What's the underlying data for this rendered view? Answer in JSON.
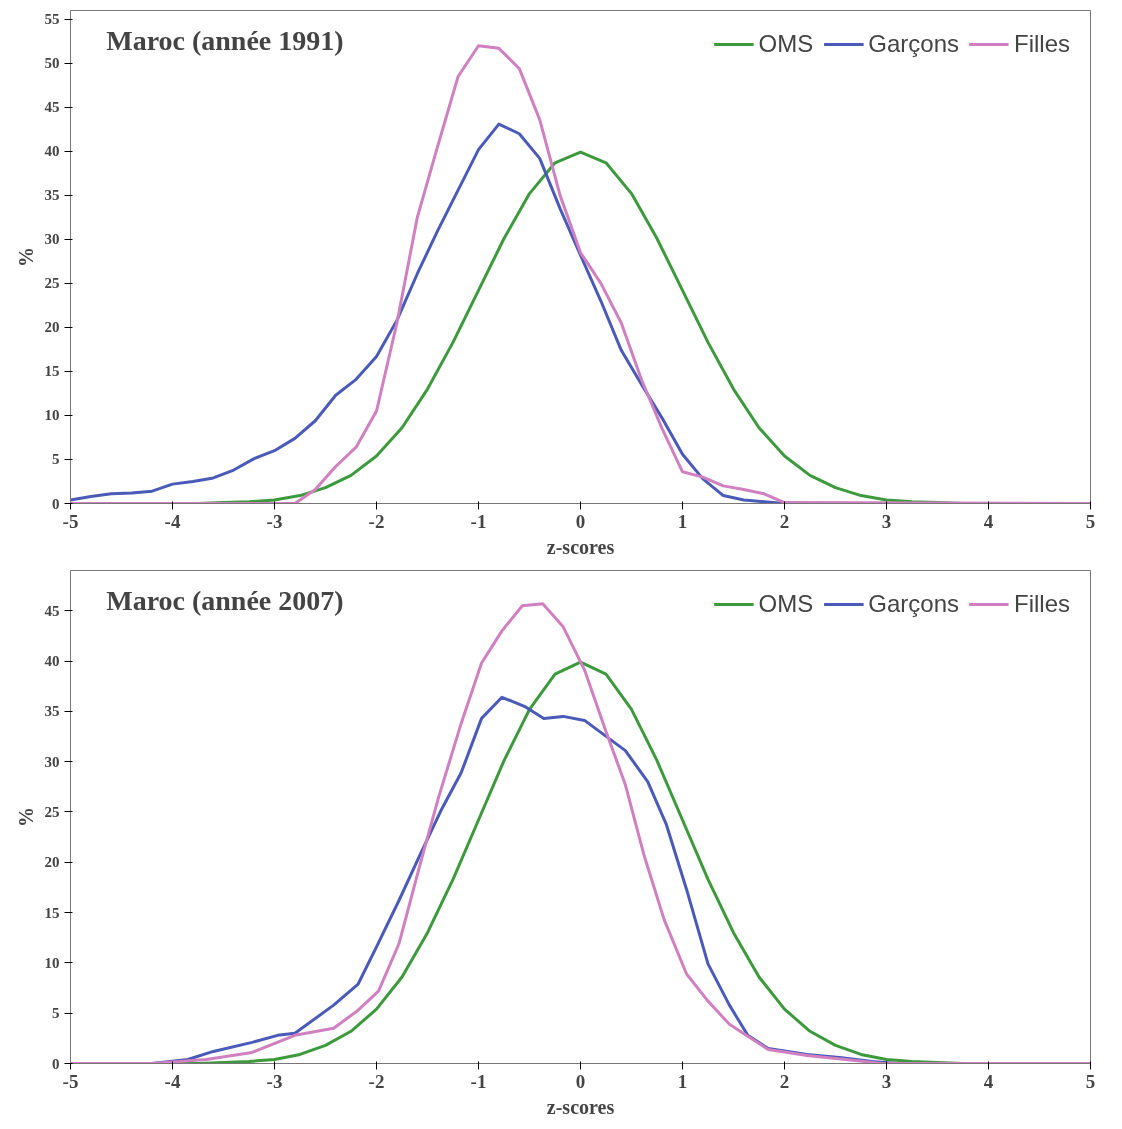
{
  "chart_data": [
    {
      "type": "line",
      "title": "Maroc (année 1991)",
      "xlabel": "z-scores",
      "ylabel": "%",
      "xlim": [
        -5,
        5
      ],
      "ylim": [
        0,
        56
      ],
      "xticks": [
        -5,
        -4,
        -3,
        -2,
        -1,
        0,
        1,
        2,
        3,
        4,
        5
      ],
      "yticks": [
        0,
        5,
        10,
        15,
        20,
        25,
        30,
        35,
        40,
        45,
        50,
        55
      ],
      "grid": false,
      "legend": "top right",
      "marker": "none",
      "line_style": "solid",
      "series": [
        {
          "name": "OMS",
          "color": "#3c9a3c",
          "x": [
            -5,
            -4,
            -3.75,
            -3.5,
            -3.25,
            -3,
            -2.75,
            -2.5,
            -2.25,
            -2,
            -1.75,
            -1.5,
            -1.25,
            -1,
            -0.75,
            -0.5,
            -0.25,
            0,
            0.25,
            0.5,
            0.75,
            1,
            1.25,
            1.5,
            1.75,
            2,
            2.25,
            2.5,
            2.75,
            3,
            3.25,
            3.5,
            3.75
          ],
          "values": [
            0,
            0,
            0,
            0.1,
            0.2,
            0.4,
            0.9,
            1.8,
            3.2,
            5.4,
            8.6,
            13,
            18.3,
            24.2,
            30.1,
            35.2,
            38.7,
            39.9,
            38.7,
            35.2,
            30.1,
            24.2,
            18.3,
            13,
            8.6,
            5.4,
            3.2,
            1.8,
            0.9,
            0.4,
            0.2,
            0.1,
            0
          ]
        },
        {
          "name": "Garçons",
          "color": "#4a5ab8",
          "x": [
            -5,
            -4.8,
            -4.6,
            -4.4,
            -4.2,
            -4,
            -3.8,
            -3.6,
            -3.4,
            -3.2,
            -3,
            -2.8,
            -2.6,
            -2.4,
            -2.2,
            -2,
            -1.8,
            -1.6,
            -1.4,
            -1.2,
            -1,
            -0.8,
            -0.6,
            -0.4,
            -0.2,
            0,
            0.2,
            0.4,
            0.6,
            0.8,
            1,
            1.2,
            1.4,
            1.6,
            1.8,
            2,
            5
          ],
          "values": [
            0.4,
            0.8,
            1.1,
            1.2,
            1.4,
            2.2,
            2.5,
            2.9,
            3.8,
            5.1,
            6,
            7.4,
            9.4,
            12.3,
            14.1,
            16.7,
            20.8,
            26.1,
            31,
            35.6,
            40.2,
            43.1,
            42,
            39.2,
            33.5,
            28.2,
            23,
            17.4,
            13.5,
            9.7,
            5.6,
            2.8,
            0.9,
            0.4,
            0.2,
            0,
            0
          ]
        },
        {
          "name": "Filles",
          "color": "#d080c0",
          "x": [
            -5,
            -2.8,
            -2.6,
            -2.4,
            -2.2,
            -2,
            -1.8,
            -1.6,
            -1.4,
            -1.2,
            -1,
            -0.8,
            -0.6,
            -0.4,
            -0.2,
            0,
            0.2,
            0.4,
            0.6,
            0.8,
            1,
            1.2,
            1.4,
            1.6,
            1.8,
            2,
            5
          ],
          "values": [
            0,
            0,
            1.6,
            4.2,
            6.4,
            10.5,
            20.5,
            32.5,
            40.6,
            48.5,
            52,
            51.7,
            49.4,
            43.6,
            35,
            28.5,
            25,
            20.5,
            14,
            8.5,
            3.6,
            3,
            2,
            1.6,
            1.1,
            0.1,
            0
          ]
        }
      ]
    },
    {
      "type": "line",
      "title": "Maroc (année 2007)",
      "xlabel": "z-scores",
      "ylabel": "%",
      "xlim": [
        -5,
        5
      ],
      "ylim": [
        0,
        49
      ],
      "xticks": [
        -5,
        -4,
        -3,
        -2,
        -1,
        0,
        1,
        2,
        3,
        4,
        5
      ],
      "yticks": [
        0,
        5,
        10,
        15,
        20,
        25,
        30,
        35,
        40,
        45
      ],
      "grid": false,
      "legend": "top right",
      "marker": "none",
      "line_style": "solid",
      "series": [
        {
          "name": "OMS",
          "color": "#3c9a3c",
          "x": [
            -5,
            -4,
            -3.75,
            -3.5,
            -3.25,
            -3,
            -2.75,
            -2.5,
            -2.25,
            -2,
            -1.75,
            -1.5,
            -1.25,
            -1,
            -0.75,
            -0.5,
            -0.25,
            0,
            0.25,
            0.5,
            0.75,
            1,
            1.25,
            1.5,
            1.75,
            2,
            2.25,
            2.5,
            2.75,
            3,
            3.25,
            3.5,
            3.75,
            4,
            5
          ],
          "values": [
            0,
            0,
            0,
            0.1,
            0.2,
            0.4,
            0.9,
            1.8,
            3.2,
            5.4,
            8.6,
            13,
            18.3,
            24.2,
            30.1,
            35.2,
            38.7,
            39.9,
            38.7,
            35.2,
            30.1,
            24.2,
            18.3,
            13,
            8.6,
            5.4,
            3.2,
            1.8,
            0.9,
            0.4,
            0.2,
            0.1,
            0,
            0,
            0
          ]
        },
        {
          "name": "Garçons",
          "color": "#4a5ab8",
          "x": [
            -5,
            -4.2,
            -3.85,
            -3.6,
            -3.22,
            -2.97,
            -2.8,
            -2.42,
            -2.18,
            -2,
            -1.78,
            -1.57,
            -1.36,
            -1.17,
            -0.97,
            -0.77,
            -0.55,
            -0.36,
            -0.17,
            0.04,
            0.44,
            0.66,
            0.84,
            1.04,
            1.25,
            1.46,
            1.64,
            1.84,
            2.22,
            2.54,
            2.86,
            3.1,
            5
          ],
          "values": [
            0,
            0,
            0.4,
            1.2,
            2.1,
            2.8,
            3,
            5.8,
            7.9,
            11.6,
            16.2,
            20.8,
            25.3,
            28.9,
            34.3,
            36.4,
            35.5,
            34.3,
            34.5,
            34.1,
            31.1,
            28,
            23.8,
            17.3,
            9.9,
            5.8,
            2.8,
            1.5,
            0.9,
            0.6,
            0.2,
            0,
            0
          ]
        },
        {
          "name": "Filles",
          "color": "#d080c0",
          "x": [
            -5,
            -4.2,
            -3.67,
            -3.22,
            -2.8,
            -2.42,
            -2.18,
            -1.98,
            -1.78,
            -1.57,
            -1.39,
            -1.17,
            -0.97,
            -0.77,
            -0.57,
            -0.37,
            -0.17,
            0.04,
            0.25,
            0.44,
            0.62,
            0.82,
            1.04,
            1.25,
            1.46,
            1.64,
            1.84,
            2.22,
            2.6,
            2.96,
            5
          ],
          "values": [
            0,
            0,
            0.4,
            1.1,
            2.8,
            3.5,
            5.3,
            7.2,
            11.9,
            19.9,
            26.5,
            33.8,
            39.8,
            43,
            45.5,
            45.7,
            43.4,
            39.1,
            33,
            27.7,
            20.8,
            14.3,
            8.9,
            6.2,
            3.9,
            2.7,
            1.4,
            0.8,
            0.4,
            0,
            0
          ]
        }
      ]
    }
  ]
}
